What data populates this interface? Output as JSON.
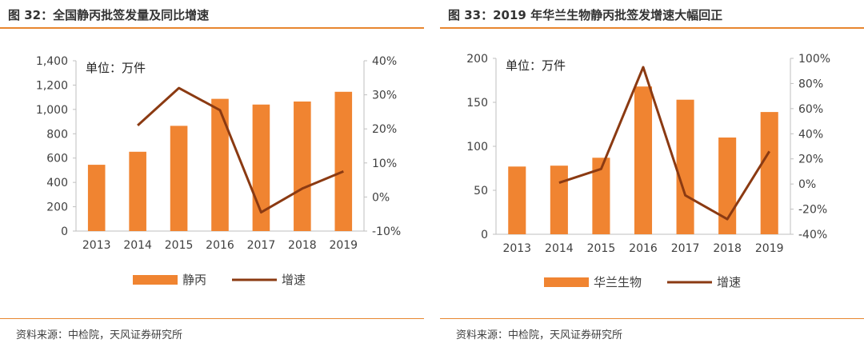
{
  "panels": [
    {
      "title": "图 32：全国静丙批签发量及同比增速",
      "source": "资料来源：中检院，天风证券研究所",
      "chart_data": {
        "type": "bar",
        "unit_label": "单位：万件",
        "categories": [
          "2013",
          "2014",
          "2015",
          "2016",
          "2017",
          "2018",
          "2019"
        ],
        "series": [
          {
            "name": "静丙",
            "type": "bar",
            "axis": "left",
            "values": [
              545,
              652,
              865,
              1087,
              1040,
              1065,
              1145
            ]
          },
          {
            "name": "增速",
            "type": "line",
            "axis": "right",
            "values": [
              null,
              0.21,
              0.32,
              0.255,
              -0.045,
              0.025,
              0.075
            ]
          }
        ],
        "y_left": {
          "min": 0,
          "max": 1400,
          "ticks": [
            0,
            200,
            400,
            600,
            800,
            1000,
            1200,
            1400
          ],
          "tick_labels": [
            "0",
            "200",
            "400",
            "600",
            "800",
            "1,000",
            "1,200",
            "1,400"
          ]
        },
        "y_right": {
          "min": -0.1,
          "max": 0.4,
          "ticks": [
            -0.1,
            0,
            0.1,
            0.2,
            0.3,
            0.4
          ],
          "tick_labels": [
            "-10%",
            "0%",
            "10%",
            "20%",
            "30%",
            "40%"
          ]
        },
        "legend_position": "bottom",
        "grid": false
      }
    },
    {
      "title": "图 33：2019 年华兰生物静丙批签发增速大幅回正",
      "source": "资料来源：中检院，天风证券研究所",
      "chart_data": {
        "type": "bar",
        "unit_label": "单位：万件",
        "categories": [
          "2013",
          "2014",
          "2015",
          "2016",
          "2017",
          "2018",
          "2019"
        ],
        "series": [
          {
            "name": "华兰生物",
            "type": "bar",
            "axis": "left",
            "values": [
              77,
              78,
              87,
              168,
              153,
              110,
              139
            ]
          },
          {
            "name": "增速",
            "type": "line",
            "axis": "right",
            "values": [
              null,
              0.01,
              0.12,
              0.93,
              -0.09,
              -0.28,
              0.26
            ]
          }
        ],
        "y_left": {
          "min": 0,
          "max": 200,
          "ticks": [
            0,
            50,
            100,
            150,
            200
          ],
          "tick_labels": [
            "0",
            "50",
            "100",
            "150",
            "200"
          ]
        },
        "y_right": {
          "min": -0.4,
          "max": 1.0,
          "ticks": [
            -0.4,
            -0.2,
            0,
            0.2,
            0.4,
            0.6,
            0.8,
            1.0
          ],
          "tick_labels": [
            "-40%",
            "-20%",
            "0%",
            "20%",
            "40%",
            "60%",
            "80%",
            "100%"
          ]
        },
        "legend_position": "bottom",
        "grid": false
      }
    }
  ],
  "colors": {
    "bar": "#f08431",
    "line": "#8b3a12",
    "axis": "#bfbfbf",
    "text": "#404040",
    "accent_rule": "#e8862f"
  }
}
